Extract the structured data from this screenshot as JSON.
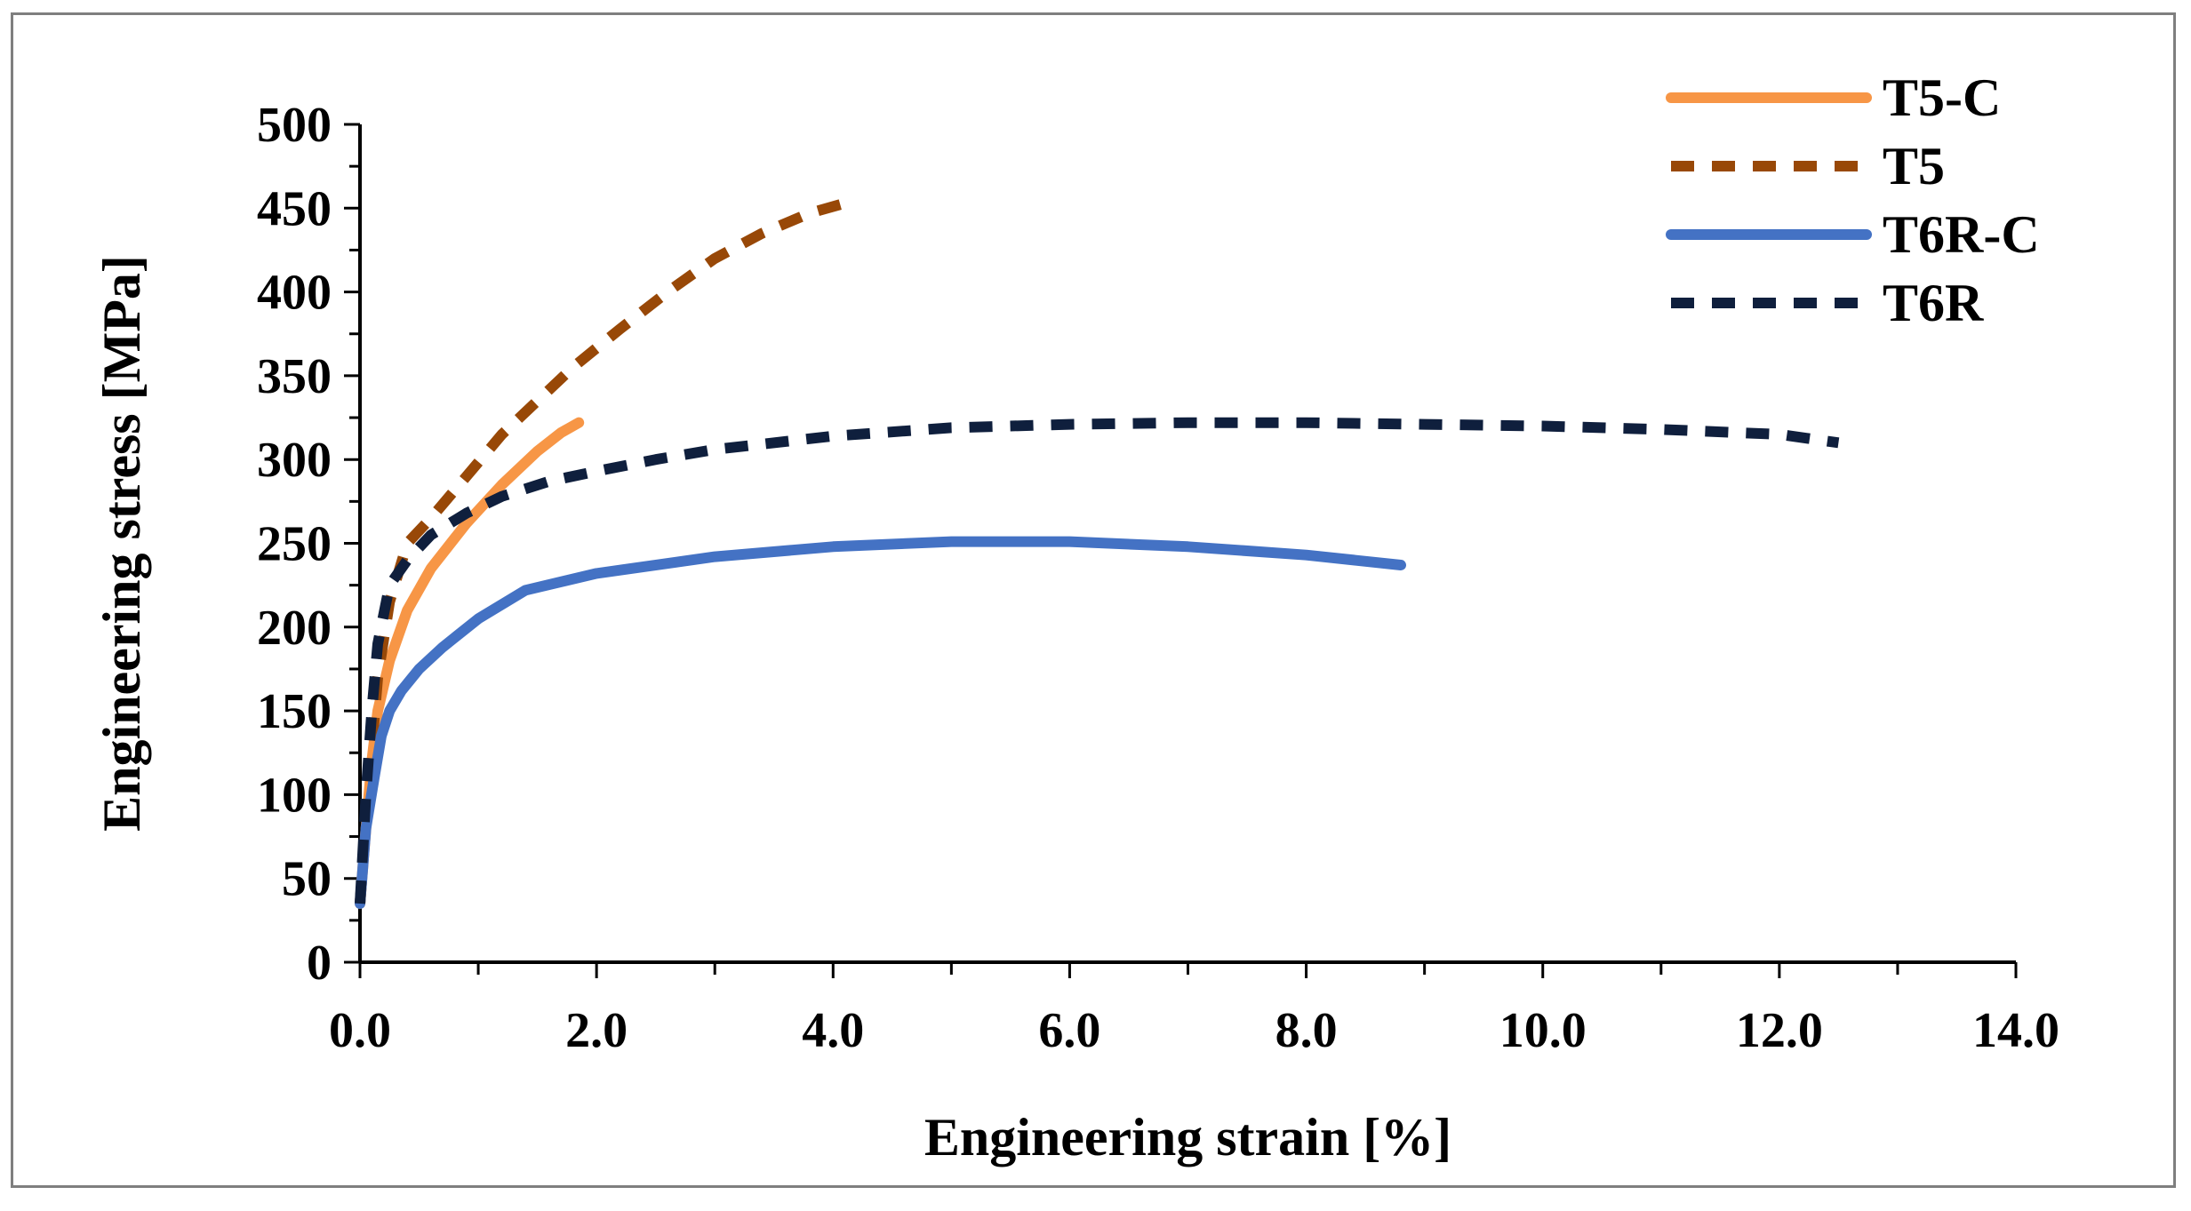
{
  "chart_data": {
    "type": "line",
    "title": "",
    "xlabel": "Engineering strain [%]",
    "ylabel": "Engineering stress [MPa]",
    "xlim": [
      0,
      14
    ],
    "ylim": [
      0,
      500
    ],
    "xticks": [
      0,
      2,
      4,
      6,
      8,
      10,
      12,
      14
    ],
    "xtick_labels": [
      "0.0",
      "2.0",
      "4.0",
      "6.0",
      "8.0",
      "10.0",
      "12.0",
      "14.0"
    ],
    "x_minor_step": 1,
    "yticks": [
      0,
      50,
      100,
      150,
      200,
      250,
      300,
      350,
      400,
      450,
      500
    ],
    "ytick_labels": [
      "0",
      "50",
      "100",
      "150",
      "200",
      "250",
      "300",
      "350",
      "400",
      "450",
      "500"
    ],
    "y_minor_step": 25,
    "grid": false,
    "legend_position": "top-right",
    "series": [
      {
        "name": "T5-C",
        "color": "#f79646",
        "style": "solid",
        "points": [
          [
            0.0,
            35
          ],
          [
            0.05,
            80
          ],
          [
            0.1,
            120
          ],
          [
            0.15,
            150
          ],
          [
            0.25,
            180
          ],
          [
            0.4,
            210
          ],
          [
            0.6,
            235
          ],
          [
            0.9,
            262
          ],
          [
            1.2,
            285
          ],
          [
            1.5,
            305
          ],
          [
            1.7,
            316
          ],
          [
            1.85,
            322
          ]
        ]
      },
      {
        "name": "T5",
        "color": "#984807",
        "style": "dashed",
        "points": [
          [
            0.0,
            35
          ],
          [
            0.08,
            110
          ],
          [
            0.15,
            170
          ],
          [
            0.25,
            215
          ],
          [
            0.4,
            250
          ],
          [
            0.6,
            265
          ],
          [
            0.9,
            290
          ],
          [
            1.2,
            315
          ],
          [
            1.5,
            335
          ],
          [
            1.8,
            355
          ],
          [
            2.2,
            378
          ],
          [
            2.6,
            400
          ],
          [
            3.0,
            420
          ],
          [
            3.4,
            435
          ],
          [
            3.8,
            447
          ],
          [
            4.2,
            455
          ]
        ]
      },
      {
        "name": "T6R-C",
        "color": "#4472c4",
        "style": "solid",
        "points": [
          [
            0.0,
            35
          ],
          [
            0.05,
            80
          ],
          [
            0.12,
            110
          ],
          [
            0.18,
            135
          ],
          [
            0.25,
            150
          ],
          [
            0.35,
            162
          ],
          [
            0.5,
            175
          ],
          [
            0.7,
            188
          ],
          [
            1.0,
            205
          ],
          [
            1.4,
            222
          ],
          [
            2.0,
            232
          ],
          [
            3.0,
            242
          ],
          [
            4.0,
            248
          ],
          [
            5.0,
            251
          ],
          [
            6.0,
            251
          ],
          [
            7.0,
            248
          ],
          [
            8.0,
            243
          ],
          [
            8.8,
            237
          ]
        ]
      },
      {
        "name": "T6R",
        "color": "#0f1f3d",
        "style": "dashed",
        "points": [
          [
            0.0,
            35
          ],
          [
            0.05,
            100
          ],
          [
            0.1,
            150
          ],
          [
            0.15,
            190
          ],
          [
            0.25,
            225
          ],
          [
            0.4,
            240
          ],
          [
            0.6,
            255
          ],
          [
            0.9,
            268
          ],
          [
            1.2,
            278
          ],
          [
            1.6,
            287
          ],
          [
            2.0,
            293
          ],
          [
            2.5,
            300
          ],
          [
            3.0,
            306
          ],
          [
            4.0,
            314
          ],
          [
            5.0,
            319
          ],
          [
            6.0,
            321
          ],
          [
            7.0,
            322
          ],
          [
            8.0,
            322
          ],
          [
            9.0,
            321
          ],
          [
            10.0,
            320
          ],
          [
            11.0,
            318
          ],
          [
            12.0,
            315
          ],
          [
            12.5,
            310
          ]
        ]
      }
    ]
  }
}
